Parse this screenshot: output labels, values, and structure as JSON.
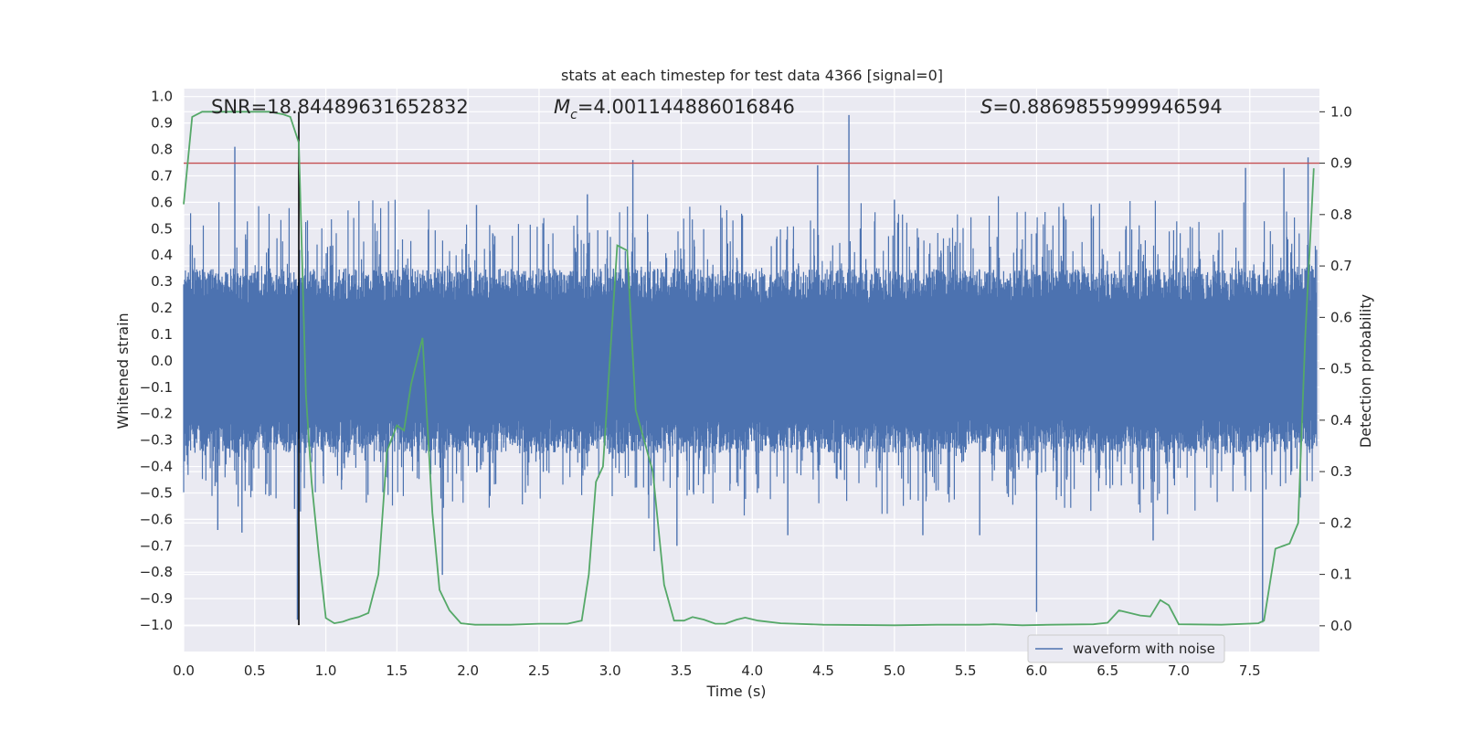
{
  "chart_data": {
    "type": "line",
    "title": "stats at each timestep for test data 4366 [signal=0]",
    "xlabel": "Time (s)",
    "ylabel": "Whitened strain",
    "y2label": "Detection probability",
    "xlim": [
      0.0,
      7.99
    ],
    "ylim": [
      -1.1,
      1.03
    ],
    "y2lim": [
      -0.05,
      1.045
    ],
    "xticks": [
      "0.0",
      "0.5",
      "1.0",
      "1.5",
      "2.0",
      "2.5",
      "3.0",
      "3.5",
      "4.0",
      "4.5",
      "5.0",
      "5.5",
      "6.0",
      "6.5",
      "7.0",
      "7.5"
    ],
    "yticks": [
      "1.0",
      "0.9",
      "0.8",
      "0.7",
      "0.6",
      "0.5",
      "0.4",
      "0.3",
      "0.2",
      "0.1",
      "0.0",
      "−0.1",
      "−0.2",
      "−0.3",
      "−0.4",
      "−0.5",
      "−0.6",
      "−0.7",
      "−0.8",
      "−0.9",
      "−1.0"
    ],
    "y2ticks": [
      "1.0",
      "0.9",
      "0.8",
      "0.7",
      "0.6",
      "0.5",
      "0.4",
      "0.3",
      "0.2",
      "0.1",
      "0.0"
    ],
    "annotations": {
      "snr": "SNR=18.84489631652832",
      "mc_symbol": "M",
      "mc_sub": "c",
      "mc_value": "=4.001144886016846",
      "s_symbol": "S",
      "s_value": "=0.8869855999946594"
    },
    "threshold": {
      "value": 0.9,
      "color": "#c44e52"
    },
    "marker_time": 0.81,
    "legend": [
      {
        "label": "waveform with noise",
        "color": "#4c72b0"
      }
    ],
    "series": [
      {
        "name": "waveform with noise",
        "color": "#4c72b0",
        "description": "noise band ~±0.35 with spikes",
        "spikes": [
          [
            0.36,
            0.81
          ],
          [
            0.24,
            -0.64
          ],
          [
            0.41,
            -0.65
          ],
          [
            0.78,
            -0.56
          ],
          [
            0.8,
            -0.98
          ],
          [
            1.82,
            -0.81
          ],
          [
            2.06,
            0.59
          ],
          [
            2.53,
            -0.42
          ],
          [
            2.84,
            0.63
          ],
          [
            3.16,
            0.76
          ],
          [
            3.31,
            -0.72
          ],
          [
            3.47,
            -0.7
          ],
          [
            4.25,
            -0.66
          ],
          [
            4.46,
            0.74
          ],
          [
            4.68,
            0.93
          ],
          [
            5.0,
            0.61
          ],
          [
            5.2,
            -0.66
          ],
          [
            5.6,
            -0.66
          ],
          [
            6.0,
            -0.95
          ],
          [
            6.63,
            0.51
          ],
          [
            6.82,
            -0.68
          ],
          [
            7.47,
            0.73
          ],
          [
            7.59,
            -0.99
          ],
          [
            7.91,
            0.77
          ],
          [
            7.74,
            0.73
          ]
        ]
      },
      {
        "name": "detection probability",
        "color": "#55a868",
        "axis": "y2",
        "x": [
          0.0,
          0.06,
          0.13,
          0.2,
          0.4,
          0.6,
          0.7,
          0.75,
          0.81,
          0.86,
          0.9,
          0.95,
          1.0,
          1.06,
          1.12,
          1.17,
          1.23,
          1.3,
          1.37,
          1.43,
          1.5,
          1.55,
          1.6,
          1.68,
          1.75,
          1.8,
          1.87,
          1.95,
          2.05,
          2.3,
          2.5,
          2.6,
          2.7,
          2.8,
          2.85,
          2.9,
          2.95,
          3.05,
          3.12,
          3.18,
          3.3,
          3.38,
          3.45,
          3.52,
          3.58,
          3.66,
          3.74,
          3.81,
          3.89,
          3.95,
          4.04,
          4.2,
          4.5,
          5.0,
          5.3,
          5.6,
          5.7,
          5.9,
          6.1,
          6.4,
          6.5,
          6.58,
          6.73,
          6.8,
          6.87,
          6.93,
          7.0,
          7.3,
          7.56,
          7.6,
          7.68,
          7.78,
          7.84,
          7.89,
          7.95
        ],
        "y": [
          0.82,
          0.99,
          1.0,
          1.0,
          1.0,
          1.0,
          0.995,
          0.99,
          0.94,
          0.45,
          0.28,
          0.14,
          0.015,
          0.005,
          0.008,
          0.013,
          0.017,
          0.025,
          0.1,
          0.34,
          0.39,
          0.38,
          0.47,
          0.56,
          0.22,
          0.07,
          0.03,
          0.005,
          0.002,
          0.002,
          0.004,
          0.004,
          0.004,
          0.01,
          0.1,
          0.28,
          0.31,
          0.74,
          0.73,
          0.42,
          0.3,
          0.08,
          0.01,
          0.01,
          0.017,
          0.012,
          0.004,
          0.004,
          0.012,
          0.016,
          0.01,
          0.005,
          0.002,
          0.001,
          0.002,
          0.002,
          0.003,
          0.001,
          0.002,
          0.003,
          0.006,
          0.03,
          0.02,
          0.018,
          0.05,
          0.04,
          0.003,
          0.002,
          0.005,
          0.01,
          0.15,
          0.16,
          0.2,
          0.56,
          0.89
        ]
      }
    ]
  }
}
